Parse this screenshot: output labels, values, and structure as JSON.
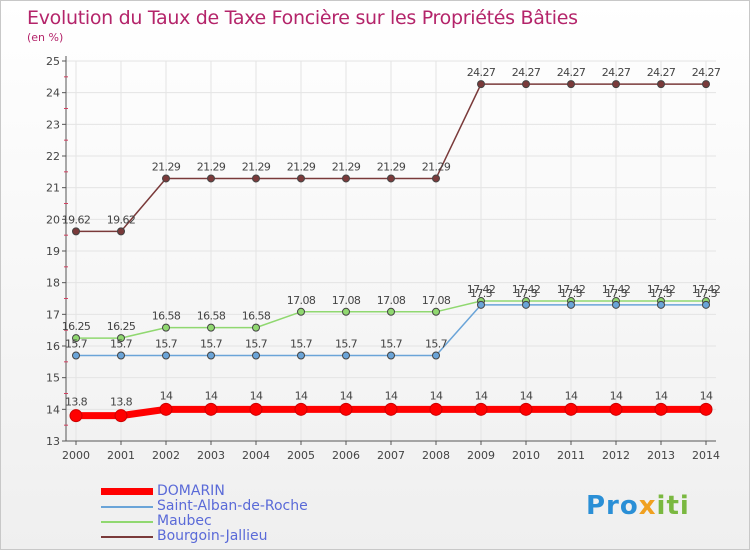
{
  "title": "Evolution du Taux de Taxe Foncière sur les Propriétés Bâties",
  "unit": "(en %)",
  "brand": {
    "p1": "Pro",
    "p2": "x",
    "p3": "iti"
  },
  "chart_data": {
    "type": "line",
    "title": "Evolution du Taux de Taxe Foncière sur les Propriétés Bâties",
    "ylabel": "(en %)",
    "xlabel": "",
    "x": [
      "2000",
      "2001",
      "2002",
      "2003",
      "2004",
      "2005",
      "2006",
      "2007",
      "2008",
      "2009",
      "2010",
      "2011",
      "2012",
      "2013",
      "2014"
    ],
    "yticks": [
      "13",
      "14",
      "15",
      "16",
      "17",
      "18",
      "19",
      "20",
      "21",
      "22",
      "23",
      "24",
      "25"
    ],
    "ylim": [
      13,
      25
    ],
    "legend_position": "bottom-left",
    "series": [
      {
        "name": "DOMARIN",
        "color": "#ff0000",
        "values": [
          13.8,
          13.8,
          14,
          14,
          14,
          14,
          14,
          14,
          14,
          14,
          14,
          14,
          14,
          14,
          14
        ],
        "labels": [
          "13.8",
          "13.8",
          "14",
          "14",
          "14",
          "14",
          "14",
          "14",
          "14",
          "14",
          "14",
          "14",
          "14",
          "14",
          "14"
        ]
      },
      {
        "name": "Saint-Alban-de-Roche",
        "color": "#6aa4d8",
        "values": [
          15.7,
          15.7,
          15.7,
          15.7,
          15.7,
          15.7,
          15.7,
          15.7,
          15.7,
          17.3,
          17.3,
          17.3,
          17.3,
          17.3,
          17.3
        ],
        "labels": [
          "15.7",
          "15.7",
          "15.7",
          "15.7",
          "15.7",
          "15.7",
          "15.7",
          "15.7",
          "15.7",
          "17.3",
          "17.3",
          "17.3",
          "17.3",
          "17.3",
          "17.3"
        ]
      },
      {
        "name": "Maubec",
        "color": "#90d870",
        "values": [
          16.25,
          16.25,
          16.58,
          16.58,
          16.58,
          17.08,
          17.08,
          17.08,
          17.08,
          17.42,
          17.42,
          17.42,
          17.42,
          17.42,
          17.42
        ],
        "labels": [
          "16.25",
          "16.25",
          "16.58",
          "16.58",
          "16.58",
          "17.08",
          "17.08",
          "17.08",
          "17.08",
          "17.42",
          "17.42",
          "17.42",
          "17.42",
          "17.42",
          "17.42"
        ]
      },
      {
        "name": "Bourgoin-Jallieu",
        "color": "#7a3a3a",
        "values": [
          19.62,
          19.62,
          21.29,
          21.29,
          21.29,
          21.29,
          21.29,
          21.29,
          21.29,
          24.27,
          24.27,
          24.27,
          24.27,
          24.27,
          24.27
        ],
        "labels": [
          "19.62",
          "19.62",
          "21.29",
          "21.29",
          "21.29",
          "21.29",
          "21.29",
          "21.29",
          "21.29",
          "24.27",
          "24.27",
          "24.27",
          "24.27",
          "24.27",
          "24.27"
        ]
      }
    ]
  }
}
